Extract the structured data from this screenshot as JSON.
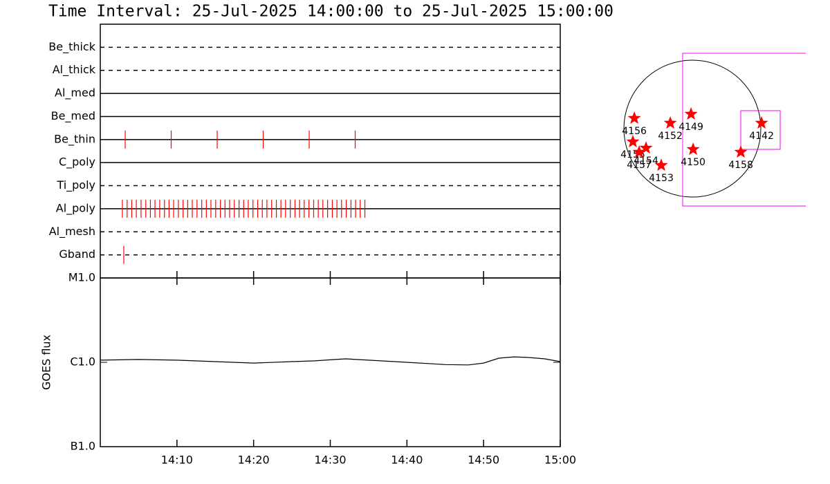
{
  "chart_data": [
    {
      "type": "timeline",
      "title": "Time Interval: 25-Jul-2025 14:00:00 to 25-Jul-2025 15:00:00",
      "xlim": [
        "14:00:00",
        "15:00:00"
      ],
      "color": "#ff0000",
      "rows": [
        {
          "label": "Be_thick",
          "style": "dashed",
          "x": []
        },
        {
          "label": "Al_thick",
          "style": "dashed",
          "x": []
        },
        {
          "label": "Al_med",
          "style": "solid",
          "x": []
        },
        {
          "label": "Be_med",
          "style": "solid",
          "x": []
        },
        {
          "label": "Be_thin",
          "style": "solid",
          "x": [
            "14:03:15",
            "14:09:15",
            "14:15:15",
            "14:21:15",
            "14:27:15",
            "14:33:15"
          ]
        },
        {
          "label": "C_poly",
          "style": "solid",
          "x": []
        },
        {
          "label": "Ti_poly",
          "style": "dashed",
          "x": []
        },
        {
          "label": "Al_poly",
          "style": "solid",
          "x": [
            "14:02:53",
            "14:03:30",
            "14:04:06",
            "14:04:42",
            "14:05:19",
            "14:05:56",
            "14:06:32",
            "14:07:08",
            "14:07:45",
            "14:08:22",
            "14:08:58",
            "14:09:34",
            "14:10:11",
            "14:10:48",
            "14:11:24",
            "14:12:00",
            "14:12:37",
            "14:13:14",
            "14:13:50",
            "14:14:26",
            "14:15:03",
            "14:15:40",
            "14:16:16",
            "14:16:52",
            "14:17:29",
            "14:18:06",
            "14:18:42",
            "14:19:18",
            "14:19:55",
            "14:20:32",
            "14:21:08",
            "14:21:44",
            "14:22:21",
            "14:22:58",
            "14:23:34",
            "14:24:10",
            "14:24:47",
            "14:25:24",
            "14:26:00",
            "14:26:36",
            "14:27:13",
            "14:27:50",
            "14:28:26",
            "14:29:02",
            "14:29:39",
            "14:30:16",
            "14:30:52",
            "14:31:28",
            "14:32:05",
            "14:32:42",
            "14:33:18",
            "14:33:54",
            "14:34:31"
          ]
        },
        {
          "label": "Al_mesh",
          "style": "dashed",
          "x": []
        },
        {
          "label": "Gband",
          "style": "dashed",
          "x": [
            "14:03:04"
          ]
        }
      ]
    },
    {
      "type": "line",
      "ylabel": "GOES flux",
      "log": true,
      "color": "#000000",
      "xlim": [
        "14:00:00",
        "15:00:00"
      ],
      "xticks": [
        {
          "value": "14:10:00",
          "label": "14:10"
        },
        {
          "value": "14:20:00",
          "label": "14:20"
        },
        {
          "value": "14:30:00",
          "label": "14:30"
        },
        {
          "value": "14:40:00",
          "label": "14:40"
        },
        {
          "value": "14:50:00",
          "label": "14:50"
        },
        {
          "value": "15:00:00",
          "label": "15:00"
        }
      ],
      "ylim": [
        1e-07,
        1e-05
      ],
      "yticks": [
        {
          "value": 1e-05,
          "label": "M1.0"
        },
        {
          "value": 1e-06,
          "label": "C1.0"
        },
        {
          "value": 1e-07,
          "label": "B1.0"
        }
      ],
      "x": [
        "14:00:00",
        "14:05:00",
        "14:10:00",
        "14:15:00",
        "14:20:00",
        "14:25:00",
        "14:28:00",
        "14:30:00",
        "14:32:00",
        "14:35:00",
        "14:40:00",
        "14:45:00",
        "14:48:00",
        "14:50:00",
        "14:52:00",
        "14:54:00",
        "14:56:00",
        "14:58:00",
        "15:00:00"
      ],
      "values": [
        1.06e-06,
        1.08e-06,
        1.06e-06,
        1.02e-06,
        9.8e-07,
        1.02e-06,
        1.04e-06,
        1.07e-06,
        1.1e-06,
        1.06e-06,
        1e-06,
        9.4e-07,
        9.3e-07,
        9.8e-07,
        1.12e-06,
        1.16e-06,
        1.14e-06,
        1.1e-06,
        1.02e-06
      ]
    },
    {
      "type": "map",
      "color": "#ff0000",
      "xlim": [
        -1162,
        1622
      ],
      "ylim": [
        -1190,
        1210
      ],
      "points": [
        {
          "label": "4156",
          "x": -806,
          "y": 144
        },
        {
          "label": "4149",
          "x": -19,
          "y": 202
        },
        {
          "label": "4152",
          "x": -307,
          "y": 77
        },
        {
          "label": "4142",
          "x": 960,
          "y": 77
        },
        {
          "label": "4150",
          "x": 10,
          "y": -288
        },
        {
          "label": "4158",
          "x": 672,
          "y": -326
        },
        {
          "label": "4155",
          "x": -826,
          "y": -182
        },
        {
          "label": "4154",
          "x": -643,
          "y": -269
        },
        {
          "label": "4157",
          "x": -739,
          "y": -326
        },
        {
          "label": "4153",
          "x": -432,
          "y": -509
        }
      ]
    }
  ]
}
